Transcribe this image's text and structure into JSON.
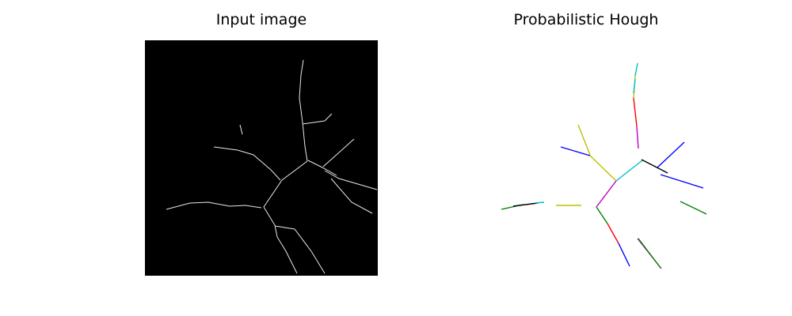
{
  "figure": {
    "left_title": "Input image",
    "right_title": "Probabilistic Hough"
  },
  "colors": {
    "background": "#ffffff",
    "image_bg": "#000000",
    "edge": "#e8e8e8",
    "segment_palette": [
      "#0000ff",
      "#00bfbf",
      "#ff0000",
      "#bf00bf",
      "#bfbf00",
      "#008000",
      "#000000"
    ]
  }
}
